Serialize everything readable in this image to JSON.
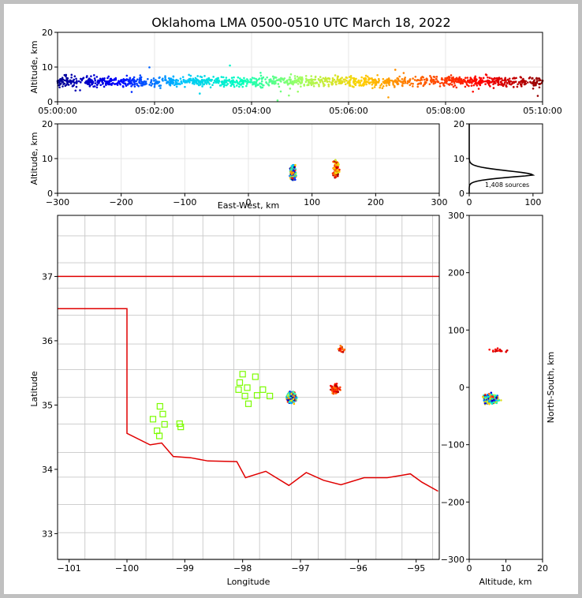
{
  "chart_data": {
    "type": "scatter",
    "title": "Oklahoma LMA 0500-0510 UTC March 18, 2022",
    "colors": {
      "state_border": "#e00000",
      "county_lines": "#c8c8c8",
      "stations": "#7cfc00",
      "grid": "#e6e6e6",
      "time_colormap": [
        "#000090",
        "#0000ff",
        "#00c0ff",
        "#00ffc0",
        "#a0ff60",
        "#ffd000",
        "#ff6000",
        "#ff0000",
        "#900000"
      ]
    },
    "panels": {
      "time_height": {
        "ylabel": "Altitude, km",
        "x_range": [
          "05:00:00",
          "05:10:00"
        ],
        "ylim": [
          0,
          20
        ],
        "x_ticks": [
          "05:00:00",
          "05:02:00",
          "05:04:00",
          "05:06:00",
          "05:08:00",
          "05:10:00"
        ],
        "y_ticks": [
          "0",
          "10",
          "20"
        ]
      },
      "ew_height": {
        "xlabel": "East-West, km",
        "ylabel": "Altitude, km",
        "xlim": [
          -300,
          300
        ],
        "ylim": [
          0,
          20
        ],
        "x_ticks": [
          "−300",
          "−200",
          "−100",
          "0",
          "100",
          "200",
          "300"
        ],
        "y_ticks": [
          "0",
          "10",
          "20"
        ]
      },
      "histogram": {
        "annotation": "1,408 sources",
        "xlim": [
          0,
          115
        ],
        "ylim": [
          0,
          20
        ],
        "x_ticks": [
          "0",
          "100"
        ],
        "y_ticks": [
          "0",
          "10",
          "20"
        ]
      },
      "plan_view": {
        "xlabel": "Longitude",
        "ylabel": "Latitude",
        "xlim": [
          -101.2,
          -94.6
        ],
        "ylim": [
          32.6,
          37.95
        ],
        "x_ticks": [
          "−101",
          "−100",
          "−99",
          "−98",
          "−97",
          "−96",
          "−95"
        ],
        "y_ticks": [
          "33",
          "34",
          "35",
          "36",
          "37"
        ]
      },
      "ns_height": {
        "xlabel": "Altitude, km",
        "ylabel": "North-South, km",
        "xlim": [
          0,
          20
        ],
        "ylim": [
          -300,
          300
        ],
        "x_ticks": [
          "0",
          "10",
          "20"
        ],
        "y_ticks": [
          "−300",
          "−200",
          "−100",
          "0",
          "100",
          "200",
          "300"
        ]
      }
    },
    "source_clusters": [
      {
        "lon": -97.15,
        "lat": 35.12,
        "alt_km": 6
      },
      {
        "lon": -96.4,
        "lat": 35.25,
        "alt_km": 7
      },
      {
        "lon": -96.3,
        "lat": 35.87,
        "alt_km": 9
      }
    ],
    "stations": [
      {
        "lon": -99.55,
        "lat": 34.78
      },
      {
        "lon": -99.43,
        "lat": 34.98
      },
      {
        "lon": -99.38,
        "lat": 34.86
      },
      {
        "lon": -99.35,
        "lat": 34.7
      },
      {
        "lon": -99.48,
        "lat": 34.6
      },
      {
        "lon": -99.44,
        "lat": 34.52
      },
      {
        "lon": -99.09,
        "lat": 34.71
      },
      {
        "lon": -99.07,
        "lat": 34.66
      },
      {
        "lon": -98.0,
        "lat": 35.48
      },
      {
        "lon": -98.05,
        "lat": 35.35
      },
      {
        "lon": -98.07,
        "lat": 35.24
      },
      {
        "lon": -97.92,
        "lat": 35.27
      },
      {
        "lon": -97.78,
        "lat": 35.44
      },
      {
        "lon": -97.96,
        "lat": 35.14
      },
      {
        "lon": -97.9,
        "lat": 35.02
      },
      {
        "lon": -97.75,
        "lat": 35.15
      },
      {
        "lon": -97.65,
        "lat": 35.24
      },
      {
        "lon": -97.53,
        "lat": 35.14
      }
    ]
  }
}
